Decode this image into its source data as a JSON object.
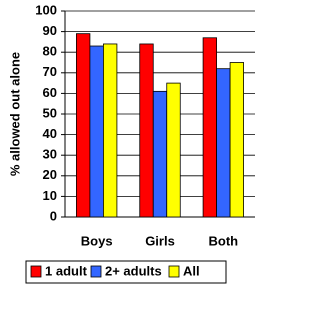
{
  "chart_data": {
    "type": "bar",
    "y_label": "% allowed out alone",
    "categories": [
      "Boys",
      "Girls",
      "Both"
    ],
    "series": [
      {
        "name": "1 adult",
        "color": "#ff0000",
        "values": [
          89,
          84,
          87
        ]
      },
      {
        "name": "2+ adults",
        "color": "#3366ff",
        "values": [
          83,
          61,
          72
        ]
      },
      {
        "name": "All",
        "color": "#ffff00",
        "values": [
          84,
          65,
          75
        ]
      }
    ],
    "ylim": [
      0,
      100
    ],
    "yticks": [
      0,
      10,
      20,
      30,
      40,
      50,
      60,
      70,
      80,
      90,
      100
    ],
    "grid": true,
    "legend": "bottom"
  }
}
